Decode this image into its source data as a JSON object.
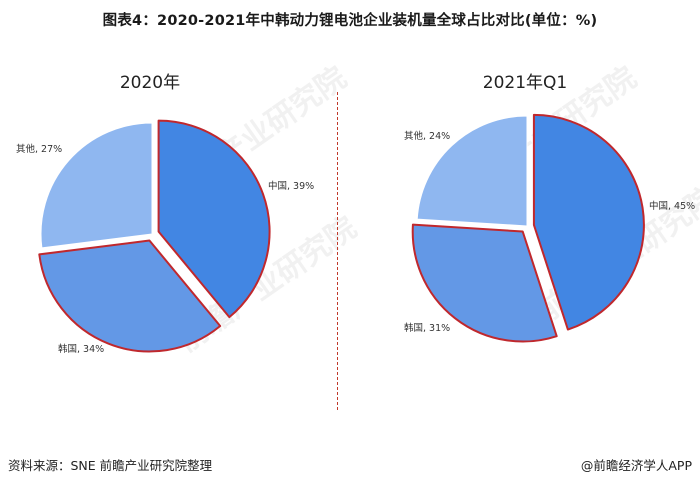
{
  "title": "图表4：2020-2021年中韩动力锂电池企业装机量全球占比对比(单位：%)",
  "source": "资料来源：SNE 前瞻产业研究院整理",
  "credit": "@前瞻经济学人APP",
  "watermark": "前瞻产业研究院",
  "colors": {
    "china": "#4286e3",
    "korea": "#6398e6",
    "other": "#8fb7f0",
    "highlight_border": "#c0282d",
    "divider": "#c0392b"
  },
  "chart_data": [
    {
      "type": "pie",
      "title": "2020年",
      "slices": [
        {
          "label": "中国",
          "value": 39,
          "text": "中国, 39%",
          "highlighted": true,
          "exploded": true
        },
        {
          "label": "韩国",
          "value": 34,
          "text": "韩国, 34%",
          "highlighted": true,
          "exploded": true
        },
        {
          "label": "其他",
          "value": 27,
          "text": "其他, 27%",
          "highlighted": false,
          "exploded": false
        }
      ]
    },
    {
      "type": "pie",
      "title": "2021年Q1",
      "slices": [
        {
          "label": "中国",
          "value": 45,
          "text": "中国, 45%",
          "highlighted": true,
          "exploded": true
        },
        {
          "label": "韩国",
          "value": 31,
          "text": "韩国, 31%",
          "highlighted": true,
          "exploded": true
        },
        {
          "label": "其他",
          "value": 24,
          "text": "其他, 24%",
          "highlighted": false,
          "exploded": false
        }
      ]
    }
  ]
}
